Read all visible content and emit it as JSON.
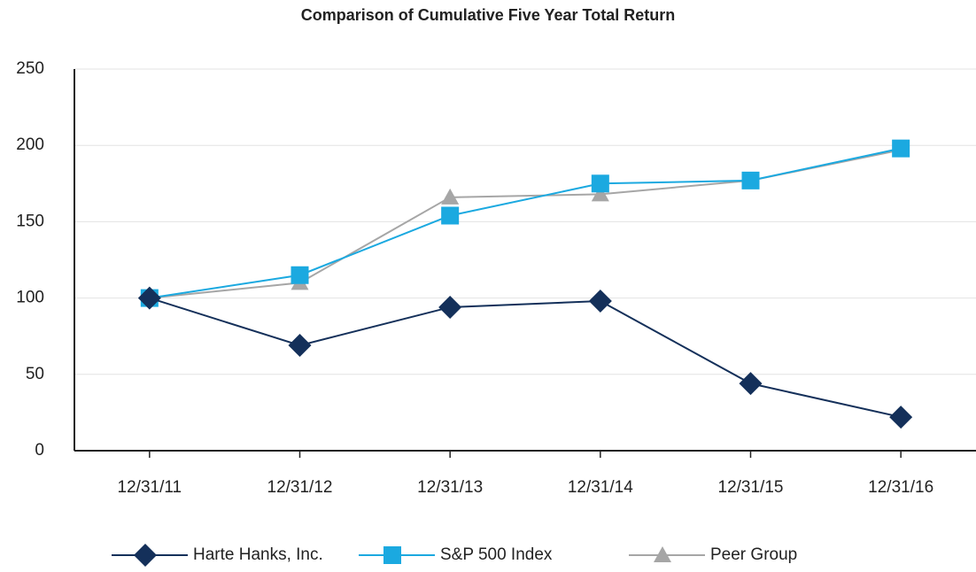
{
  "chart_data": {
    "type": "line",
    "title": "Comparison of Cumulative Five Year Total Return",
    "categories": [
      "12/31/11",
      "12/31/12",
      "12/31/13",
      "12/31/14",
      "12/31/15",
      "12/31/16"
    ],
    "series": [
      {
        "name": "Harte Hanks, Inc.",
        "color": "#14305a",
        "marker": "diamond",
        "values": [
          100,
          69,
          94,
          98,
          44,
          22
        ]
      },
      {
        "name": "S&P 500 Index",
        "color": "#1ba9e0",
        "marker": "square",
        "values": [
          100,
          115,
          154,
          175,
          177,
          198
        ]
      },
      {
        "name": "Peer Group",
        "color": "#a6a6a6",
        "marker": "triangle",
        "values": [
          100,
          110,
          166,
          168,
          177,
          197
        ]
      }
    ],
    "ylim": [
      0,
      250
    ],
    "yticks": [
      0,
      50,
      100,
      150,
      200,
      250
    ],
    "grid": true,
    "legend": "bottom"
  }
}
